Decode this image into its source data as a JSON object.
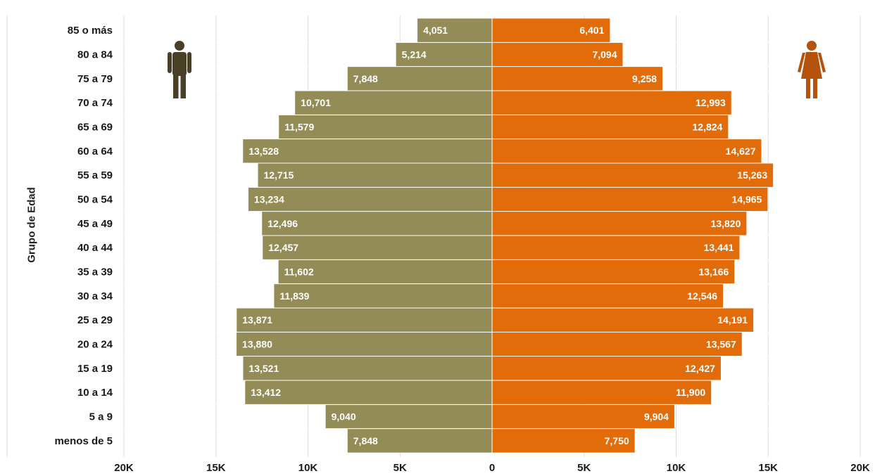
{
  "chart_data": {
    "type": "bar",
    "orientation": "horizontal",
    "layout": "population-pyramid",
    "ylabel": "Grupo de Edad",
    "xlabel": "",
    "xlim": [
      -20000,
      20000
    ],
    "xticks": [
      -20000,
      -15000,
      -10000,
      -5000,
      0,
      5000,
      10000,
      15000,
      20000
    ],
    "xtick_labels": [
      "20K",
      "15K",
      "10K",
      "5K",
      "0",
      "5K",
      "10K",
      "15K",
      "20K"
    ],
    "grid": true,
    "categories": [
      "85 o más",
      "80 a 84",
      "75 a 79",
      "70 a 74",
      "65 a 69",
      "60 a 64",
      "55 a 59",
      "50 a 54",
      "45 a 49",
      "40 a 44",
      "35 a 39",
      "30 a 34",
      "25 a 29",
      "20 a 24",
      "15 a 19",
      "10 a 14",
      "5 a 9",
      "menos de 5"
    ],
    "series": [
      {
        "side": "left",
        "color": "#948c56",
        "values": [
          4051,
          5214,
          7848,
          10701,
          11579,
          13528,
          12715,
          13234,
          12496,
          12457,
          11602,
          11839,
          13871,
          13880,
          13521,
          13412,
          9040,
          7848
        ],
        "labels": [
          "4,051",
          "5,214",
          "7,848",
          "10,701",
          "11,579",
          "13,528",
          "12,715",
          "13,234",
          "12,496",
          "12,457",
          "11,602",
          "11,839",
          "13,871",
          "13,880",
          "13,521",
          "13,412",
          "9,040",
          "7,848"
        ]
      },
      {
        "side": "right",
        "color": "#e36c0a",
        "values": [
          6401,
          7094,
          9258,
          12993,
          12824,
          14627,
          15263,
          14965,
          13820,
          13441,
          13166,
          12546,
          14191,
          13567,
          12427,
          11900,
          9904,
          7750
        ],
        "labels": [
          "6,401",
          "7,094",
          "9,258",
          "12,993",
          "12,824",
          "14,627",
          "15,263",
          "14,965",
          "13,820",
          "13,441",
          "13,166",
          "12,546",
          "14,191",
          "13,567",
          "12,427",
          "11,900",
          "9,904",
          "7,750"
        ]
      }
    ],
    "icons": [
      {
        "name": "male-figure-icon",
        "color": "#4a4028"
      },
      {
        "name": "female-figure-icon",
        "color": "#b5520c"
      }
    ]
  }
}
